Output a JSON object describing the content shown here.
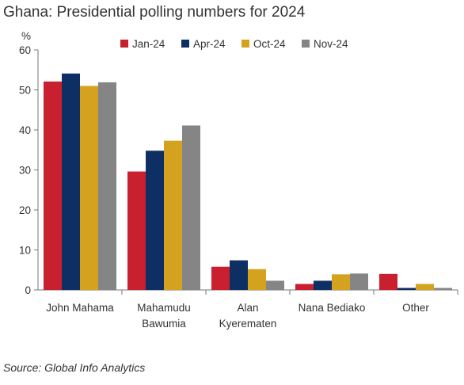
{
  "title": "Ghana: Presidential polling numbers for 2024",
  "source": "Source: Global Info Analytics",
  "chart_data": {
    "type": "bar",
    "title": "Ghana: Presidential polling numbers for 2024",
    "ylabel": "%",
    "ylim": [
      0,
      60
    ],
    "yticks": [
      0,
      10,
      20,
      30,
      40,
      50,
      60
    ],
    "grid": false,
    "legend_position": "top-right",
    "categories": [
      [
        "John Mahama"
      ],
      [
        "Mahamudu",
        "Bawumia"
      ],
      [
        "Alan",
        "Kyerematen"
      ],
      [
        "Nana Bediako"
      ],
      [
        "Other"
      ]
    ],
    "series": [
      {
        "name": "Jan-24",
        "color": "#c8202f",
        "values": [
          52.1,
          29.6,
          5.8,
          1.5,
          4.0
        ]
      },
      {
        "name": "Apr-24",
        "color": "#0d2f63",
        "values": [
          54.1,
          34.8,
          7.4,
          2.3,
          0.5
        ]
      },
      {
        "name": "Oct-24",
        "color": "#d4a21e",
        "values": [
          51.0,
          37.3,
          5.2,
          3.9,
          1.5
        ]
      },
      {
        "name": "Nov-24",
        "color": "#858585",
        "values": [
          51.9,
          41.1,
          2.3,
          4.1,
          0.5
        ]
      }
    ]
  }
}
